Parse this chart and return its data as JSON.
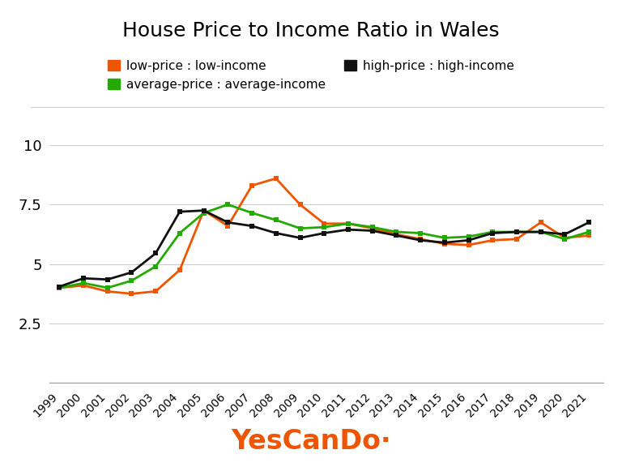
{
  "title": "House Price to Income Ratio in Wales",
  "years": [
    1999,
    2000,
    2001,
    2002,
    2003,
    2004,
    2005,
    2006,
    2007,
    2008,
    2009,
    2010,
    2011,
    2012,
    2013,
    2014,
    2015,
    2016,
    2017,
    2018,
    2019,
    2020,
    2021
  ],
  "low_price": [
    4.0,
    4.1,
    3.85,
    3.75,
    3.85,
    4.75,
    7.25,
    6.6,
    8.3,
    8.6,
    7.5,
    6.7,
    6.7,
    6.5,
    6.25,
    6.05,
    5.85,
    5.8,
    6.0,
    6.05,
    6.75,
    6.1,
    6.2
  ],
  "avg_price": [
    4.0,
    4.2,
    4.0,
    4.3,
    4.9,
    6.3,
    7.15,
    7.5,
    7.15,
    6.85,
    6.5,
    6.55,
    6.7,
    6.55,
    6.35,
    6.3,
    6.1,
    6.15,
    6.35,
    6.35,
    6.35,
    6.05,
    6.35
  ],
  "high_price": [
    4.05,
    4.4,
    4.35,
    4.65,
    5.45,
    7.2,
    7.25,
    6.75,
    6.6,
    6.3,
    6.1,
    6.3,
    6.45,
    6.4,
    6.2,
    6.0,
    5.9,
    6.0,
    6.3,
    6.35,
    6.35,
    6.25,
    6.75
  ],
  "low_color": "#EE5500",
  "avg_color": "#22AA00",
  "high_color": "#111111",
  "yticks": [
    0,
    2.5,
    5,
    7.5,
    10
  ],
  "ylim": [
    0,
    10.8
  ],
  "brand_color": "#EE5500",
  "legend_labels": [
    "low-price : low-income",
    "average-price : average-income",
    "high-price : high-income"
  ]
}
